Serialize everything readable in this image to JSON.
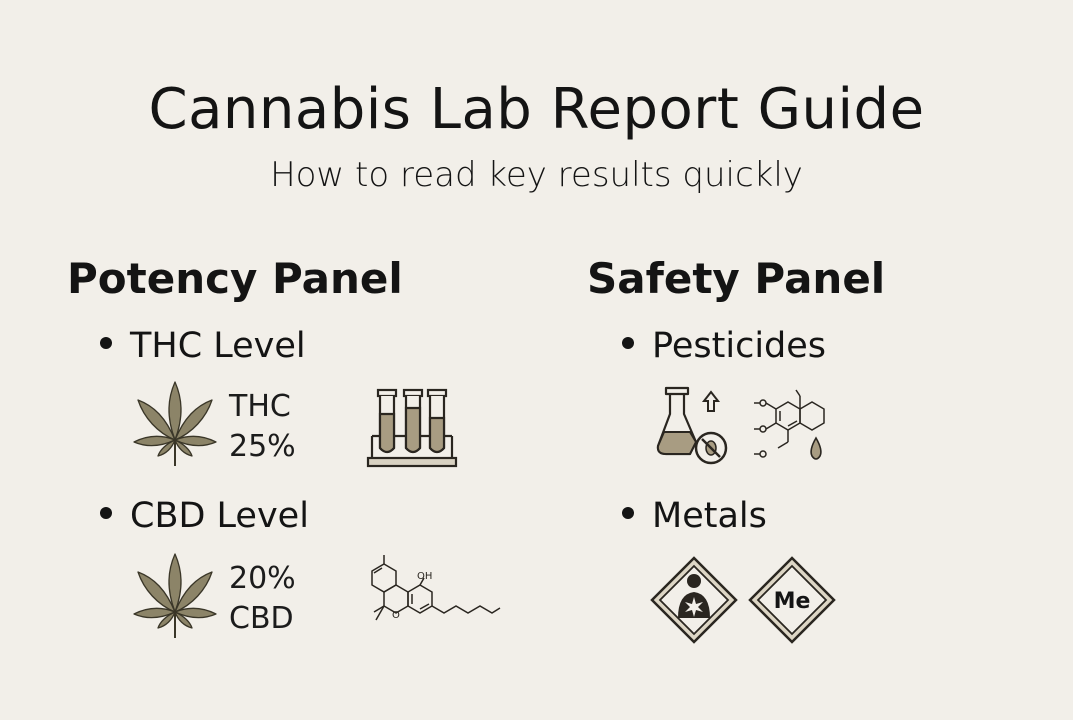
{
  "header": {
    "title": "Cannabis Lab Report Guide",
    "subtitle": "How to read key results quickly"
  },
  "potency": {
    "heading": "Potency Panel",
    "thc": {
      "label": "THC Level",
      "line1": "THC",
      "line2": "25%",
      "icons": [
        "cannabis-leaf-icon",
        "test-tubes-rack-icon"
      ]
    },
    "cbd": {
      "label": "CBD Level",
      "line1": "20%",
      "line2": "CBD",
      "icons": [
        "cannabis-leaf-icon",
        "cbd-molecule-icon"
      ],
      "molecule_label": "OH"
    }
  },
  "safety": {
    "heading": "Safety Panel",
    "pesticides": {
      "label": "Pesticides",
      "icons": [
        "flask-no-bug-icon",
        "pesticide-molecule-icon"
      ]
    },
    "metals": {
      "label": "Metals",
      "icons": [
        "health-hazard-icon",
        "metal-diamond-icon"
      ],
      "metal_symbol": "Me"
    }
  },
  "colors": {
    "background": "#f2efe9",
    "text": "#141414",
    "leaf": "#8c8468",
    "tube_fill": "#a89c82"
  }
}
